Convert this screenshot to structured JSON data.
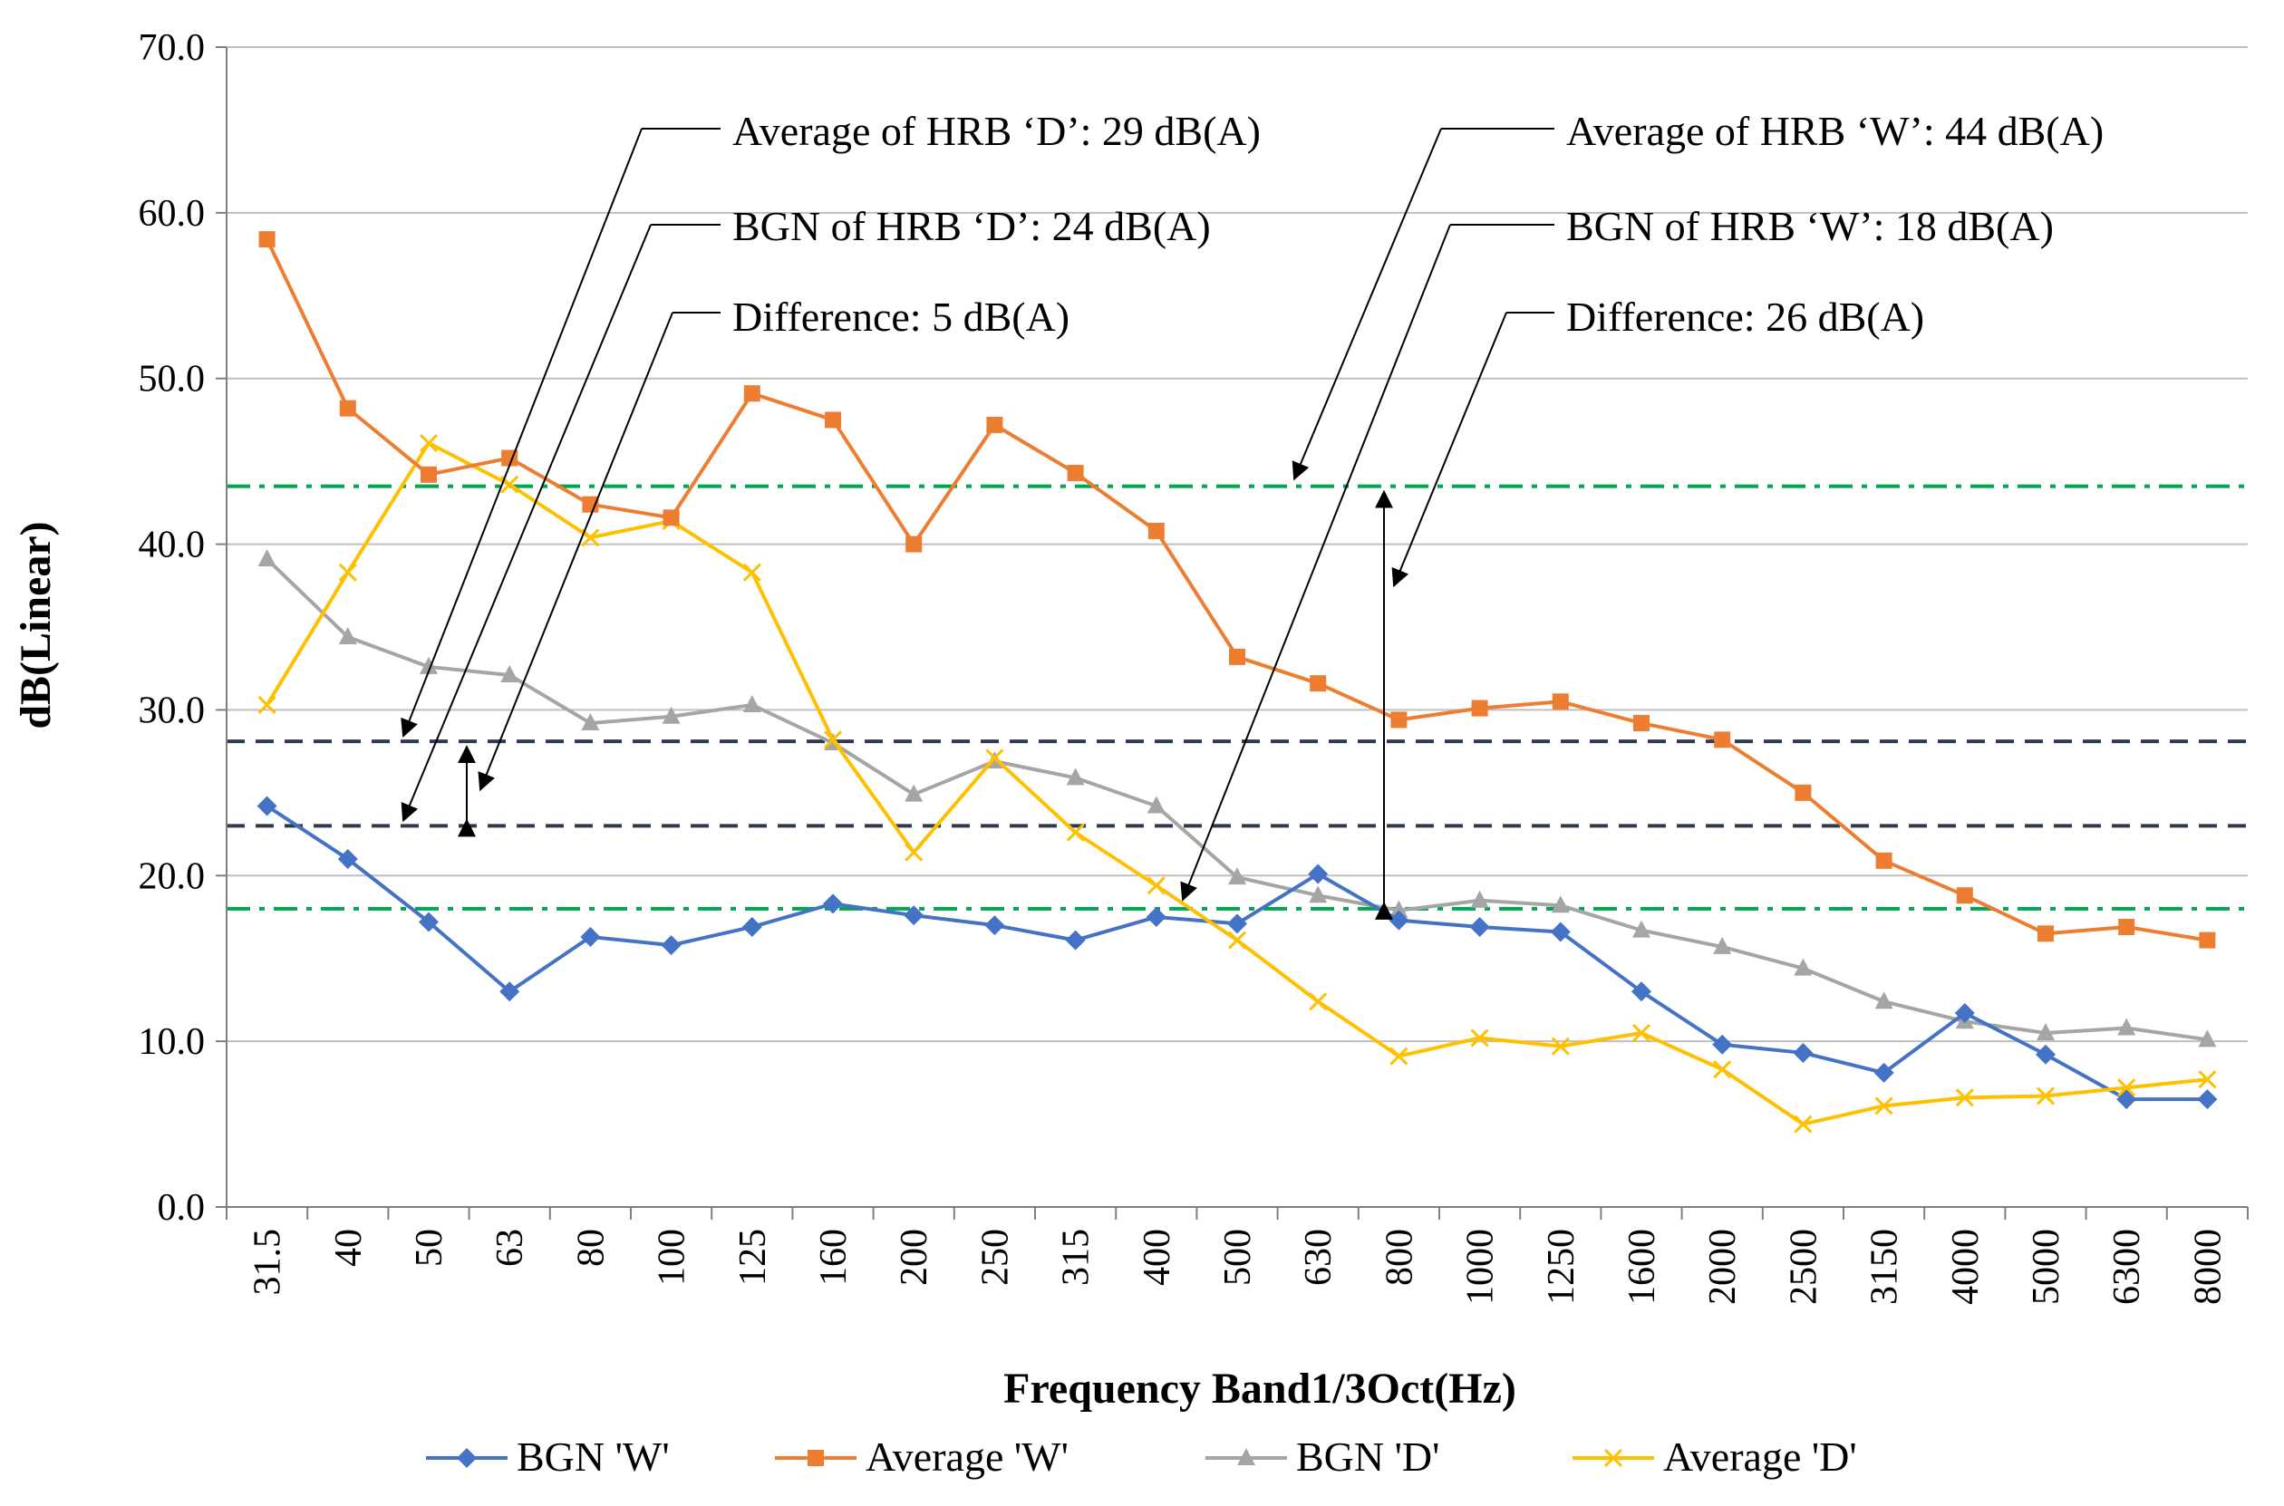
{
  "chart_data": {
    "type": "line",
    "title": "",
    "xlabel": "Frequency Band1/3Oct(Hz)",
    "ylabel": "dB(Linear)",
    "ylim": [
      0,
      70
    ],
    "yticks": [
      "0.0",
      "10.0",
      "20.0",
      "30.0",
      "40.0",
      "50.0",
      "60.0",
      "70.0"
    ],
    "grid": "horizontal",
    "legend_position": "bottom",
    "categories": [
      "31.5",
      "40",
      "50",
      "63",
      "80",
      "100",
      "125",
      "160",
      "200",
      "250",
      "315",
      "400",
      "500",
      "630",
      "800",
      "1000",
      "1250",
      "1600",
      "2000",
      "2500",
      "3150",
      "4000",
      "5000",
      "6300",
      "8000"
    ],
    "series": [
      {
        "name": "BGN 'W'",
        "color": "#4472C4",
        "marker": "diamond",
        "values": [
          24.2,
          21.0,
          17.2,
          13.0,
          16.3,
          15.8,
          16.9,
          18.3,
          17.6,
          17.0,
          16.1,
          17.5,
          17.1,
          20.1,
          17.3,
          16.9,
          16.6,
          13.0,
          9.8,
          9.3,
          8.1,
          11.7,
          9.2,
          6.5,
          6.5
        ]
      },
      {
        "name": "Average 'W'",
        "color": "#ED7D31",
        "marker": "square",
        "values": [
          58.4,
          48.2,
          44.2,
          45.2,
          42.4,
          41.6,
          49.1,
          47.5,
          40.0,
          47.2,
          44.3,
          40.8,
          33.2,
          31.6,
          29.4,
          30.1,
          30.5,
          29.2,
          28.2,
          25.0,
          20.9,
          18.8,
          16.5,
          16.9,
          16.1
        ]
      },
      {
        "name": "BGN 'D'",
        "color": "#A5A5A5",
        "marker": "triangle",
        "values": [
          39.1,
          34.4,
          32.6,
          32.1,
          29.2,
          29.6,
          30.3,
          28.0,
          24.9,
          26.9,
          25.9,
          24.2,
          19.9,
          18.8,
          17.9,
          18.5,
          18.2,
          16.7,
          15.7,
          14.4,
          12.4,
          11.2,
          10.5,
          10.8,
          10.1
        ]
      },
      {
        "name": "Average 'D'",
        "color": "#FFC000",
        "marker": "x",
        "values": [
          30.3,
          38.3,
          46.1,
          43.6,
          40.4,
          41.4,
          38.3,
          28.2,
          21.4,
          27.1,
          22.6,
          19.4,
          16.1,
          12.4,
          9.1,
          10.2,
          9.7,
          10.5,
          8.3,
          5.0,
          6.1,
          6.6,
          6.7,
          7.2,
          7.7
        ]
      }
    ],
    "reference_lines": [
      {
        "name": "average-w-line",
        "y": 43.5,
        "style": "dash-dot",
        "color": "#00A651"
      },
      {
        "name": "bgn-w-line",
        "y": 18.0,
        "style": "dash-dot",
        "color": "#00A651"
      },
      {
        "name": "average-d-line",
        "y": 28.1,
        "style": "dashed",
        "color": "#2F3A4F"
      },
      {
        "name": "bgn-d-line",
        "y": 23.0,
        "style": "dashed",
        "color": "#2F3A4F"
      }
    ],
    "annotations": {
      "avg_d": "Average of HRB ‘D’: 29 dB(A)",
      "bgn_d": "BGN of HRB ‘D’: 24 dB(A)",
      "diff_d": "Difference: 5 dB(A)",
      "avg_w": "Average of HRB ‘W’: 44 dB(A)",
      "bgn_w": "BGN of HRB ‘W’: 18 dB(A)",
      "diff_w": "Difference: 26 dB(A)"
    }
  }
}
